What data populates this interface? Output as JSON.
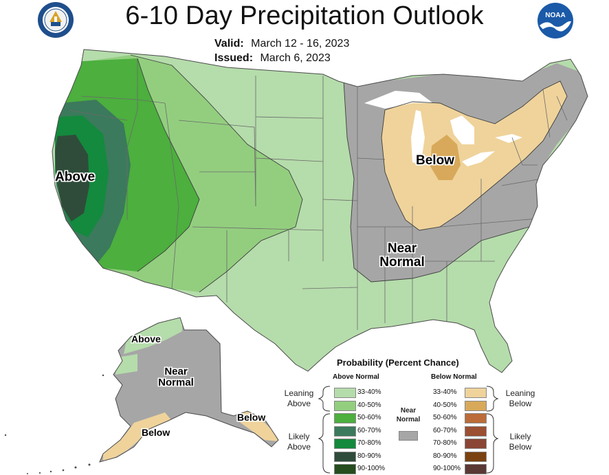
{
  "title": "6-10 Day Precipitation Outlook",
  "valid_label": "Valid:",
  "valid_value": "March 12 - 16, 2023",
  "issued_label": "Issued:",
  "issued_value": "March 6, 2023",
  "seal_left_text": "DEPARTMENT OF COMMERCE",
  "seal_right_text": "NOAA",
  "map_labels": {
    "above": "Above",
    "below": "Below",
    "near_normal_1": "Near",
    "near_normal_2": "Normal",
    "ak_above": "Above",
    "ak_near_1": "Near",
    "ak_near_2": "Normal",
    "ak_below": "Below",
    "ak_below_se": "Below"
  },
  "legend": {
    "title": "Probability (Percent Chance)",
    "above_header": "Above Normal",
    "below_header": "Below Normal",
    "leaning_above": [
      "Leaning",
      "Above"
    ],
    "likely_above": [
      "Likely",
      "Above"
    ],
    "leaning_below": [
      "Leaning",
      "Below"
    ],
    "likely_below": [
      "Likely",
      "Below"
    ],
    "near_normal": [
      "Near",
      "Normal"
    ],
    "near_normal_color": "#a6a6a6",
    "above": [
      {
        "label": "33-40%",
        "color": "#b5dcab"
      },
      {
        "label": "40-50%",
        "color": "#93ce7f"
      },
      {
        "label": "50-60%",
        "color": "#4caf3e"
      },
      {
        "label": "60-70%",
        "color": "#3b7a5c"
      },
      {
        "label": "70-80%",
        "color": "#138a3d"
      },
      {
        "label": "80-90%",
        "color": "#2f4c3a"
      },
      {
        "label": "90-100%",
        "color": "#254d1e"
      }
    ],
    "below": [
      {
        "label": "33-40%",
        "color": "#efd39b"
      },
      {
        "label": "40-50%",
        "color": "#d8a95a"
      },
      {
        "label": "50-60%",
        "color": "#bb6c3a"
      },
      {
        "label": "60-70%",
        "color": "#9b4f33"
      },
      {
        "label": "70-80%",
        "color": "#8a4534"
      },
      {
        "label": "80-90%",
        "color": "#7a4210"
      },
      {
        "label": "90-100%",
        "color": "#5a3834"
      }
    ]
  },
  "colors": {
    "lean_above": "#b5dcab",
    "above_40": "#93ce7f",
    "above_50": "#4caf3e",
    "above_60": "#3b7a5c",
    "above_70": "#138a3d",
    "above_80": "#2f4c3a",
    "near_normal": "#a6a6a6",
    "lean_below": "#efd39b",
    "below_40": "#d8a95a",
    "water": "#ffffff",
    "border": "#555555",
    "noaa_blue": "#1b5aa8",
    "commerce_blue": "#1f4e8c"
  }
}
